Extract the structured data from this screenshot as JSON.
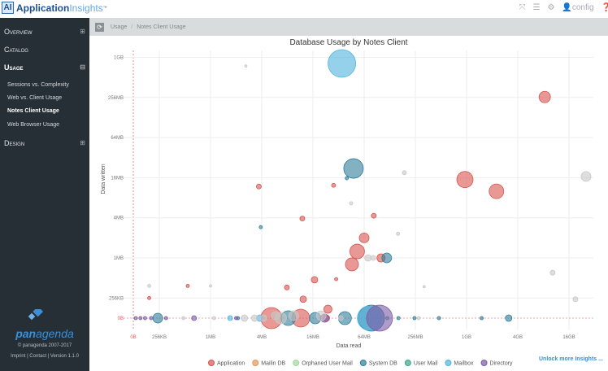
{
  "app": {
    "logo_mark": "AI",
    "name_part1": "Application",
    "name_part2": "Insights",
    "tm": "™"
  },
  "topbar": {
    "icons": [
      "expand-icon",
      "menu-icon",
      "gear-icon",
      "user-icon",
      "help-icon"
    ],
    "user": "config"
  },
  "sidebar": {
    "items": [
      {
        "label": "Overview",
        "toggle": "⊞"
      },
      {
        "label": "Catalog"
      },
      {
        "label": "Usage",
        "toggle": "⊟"
      },
      {
        "label": "Design",
        "toggle": "⊞"
      }
    ],
    "usage_sub": [
      "Sessions vs. Complexity",
      "Web vs. Client Usage",
      "Notes Client Usage",
      "Web Browser Usage"
    ],
    "active_sub": "Notes Client Usage",
    "brand": "panagenda",
    "copyright": "© panagenda 2007-2017",
    "links": "Imprint | Contact | Version 1.1.0"
  },
  "breadcrumb": [
    "Usage",
    "Notes Client Usage"
  ],
  "unlock": "Unlock more Insights ...",
  "chart_data": {
    "type": "scatter",
    "title": "Database Usage by Notes Client",
    "xlabel": "Data read",
    "ylabel": "Data written",
    "x_scale": "log",
    "y_scale": "log",
    "units": "MB",
    "xticks": [
      {
        "v": 0,
        "l": "0B"
      },
      {
        "v": 0.25,
        "l": "256KB"
      },
      {
        "v": 1,
        "l": "1MB"
      },
      {
        "v": 4,
        "l": "4MB"
      },
      {
        "v": 16,
        "l": "16MB"
      },
      {
        "v": 64,
        "l": "64MB"
      },
      {
        "v": 256,
        "l": "256MB"
      },
      {
        "v": 1024,
        "l": "1GB"
      },
      {
        "v": 4096,
        "l": "4GB"
      },
      {
        "v": 16384,
        "l": "16GB"
      }
    ],
    "yticks": [
      {
        "v": 0,
        "l": "0B"
      },
      {
        "v": 0.25,
        "l": "256KB"
      },
      {
        "v": 1,
        "l": "1MB"
      },
      {
        "v": 4,
        "l": "4MB"
      },
      {
        "v": 16,
        "l": "16MB"
      },
      {
        "v": 64,
        "l": "64MB"
      },
      {
        "v": 256,
        "l": "256MB"
      },
      {
        "v": 1024,
        "l": "1GB"
      }
    ],
    "grid": true,
    "legend": "bottom",
    "series": [
      {
        "name": "Application",
        "color": "#d9534f",
        "points": [
          [
            3.7,
            11.8,
            3
          ],
          [
            12,
            3.9,
            3
          ],
          [
            28,
            12.3,
            2.5
          ],
          [
            83,
            4.3,
            3
          ],
          [
            64,
            2,
            6
          ],
          [
            53,
            1.25,
            9
          ],
          [
            46,
            0.8,
            8
          ],
          [
            101,
            1,
            5
          ],
          [
            16.7,
            0.47,
            4
          ],
          [
            7.9,
            0.36,
            3
          ],
          [
            12.3,
            0.24,
            4
          ],
          [
            30,
            0.48,
            2
          ],
          [
            0.54,
            0.38,
            2
          ],
          [
            0.19,
            0.25,
            2
          ],
          [
            8500,
            260,
            7
          ],
          [
            980,
            15,
            10
          ],
          [
            2300,
            10,
            9
          ],
          [
            5.2,
            0,
            13
          ],
          [
            11.5,
            0,
            11
          ],
          [
            23,
            0,
            4
          ],
          [
            24,
            0.17,
            5
          ]
        ]
      },
      {
        "name": "Mailin DB",
        "color": "#e0995a",
        "points": [
          [
            6,
            0,
            2
          ]
        ]
      },
      {
        "name": "Orphaned User Mail",
        "color": "#9fd89f",
        "points": []
      },
      {
        "name": "System DB",
        "color": "#2e7d9a",
        "points": [
          [
            48,
            22,
            12
          ],
          [
            118,
            1,
            6
          ],
          [
            3.9,
            2.9,
            2
          ],
          [
            40,
            15.7,
            2
          ],
          [
            0.24,
            0,
            6
          ],
          [
            8.2,
            0,
            9
          ],
          [
            17,
            0,
            7
          ],
          [
            38,
            0,
            8
          ],
          [
            78,
            0,
            16
          ],
          [
            3200,
            0,
            4
          ],
          [
            485,
            0,
            2
          ],
          [
            250,
            0,
            2
          ],
          [
            162,
            0,
            2
          ],
          [
            1540,
            0,
            2
          ],
          [
            2.1,
            0,
            2
          ]
        ]
      },
      {
        "name": "User Mail",
        "color": "#3fa58a",
        "points": [
          [
            120,
            0,
            2
          ]
        ]
      },
      {
        "name": "Mailbox",
        "color": "#4fb3dd",
        "points": [
          [
            35,
            830,
            17
          ],
          [
            74,
            0,
            15
          ],
          [
            3.8,
            0,
            4
          ],
          [
            1.7,
            0,
            3
          ]
        ]
      },
      {
        "name": "Directory",
        "color": "#7b5aa6",
        "points": [
          [
            97,
            0,
            16
          ],
          [
            0.64,
            0,
            3
          ],
          [
            0.15,
            0,
            2
          ],
          [
            0.17,
            0,
            2
          ],
          [
            0.2,
            0,
            2
          ],
          [
            2,
            0,
            2
          ],
          [
            22,
            0,
            5
          ],
          [
            0.13,
            0,
            2
          ],
          [
            0.3,
            0,
            2
          ]
        ]
      },
      {
        "color": "#c8c8c8",
        "points": [
          [
            26000,
            16.7,
            6
          ],
          [
            10500,
            0.6,
            3
          ],
          [
            19500,
            0.24,
            3
          ],
          [
            190,
            19,
            2.5
          ],
          [
            71,
            1,
            4
          ],
          [
            82,
            1,
            3
          ],
          [
            45,
            6.6,
            2
          ],
          [
            2.6,
            760,
            1.5
          ],
          [
            0.19,
            0.38,
            2
          ],
          [
            1,
            0.38,
            1.5
          ],
          [
            325,
            0.37,
            1.5
          ],
          [
            160,
            2.3,
            2
          ],
          [
            6.7,
            0,
            7
          ],
          [
            20,
            0.05,
            6
          ],
          [
            5.8,
            0.1,
            5
          ],
          [
            2.5,
            0,
            4
          ],
          [
            3.3,
            0,
            4
          ],
          [
            1.1,
            0,
            2
          ],
          [
            0.48,
            0,
            2
          ],
          [
            34,
            0,
            3
          ],
          [
            280,
            0,
            2
          ],
          [
            9.5,
            0.08,
            6
          ],
          [
            4.2,
            0,
            4
          ]
        ]
      }
    ]
  }
}
